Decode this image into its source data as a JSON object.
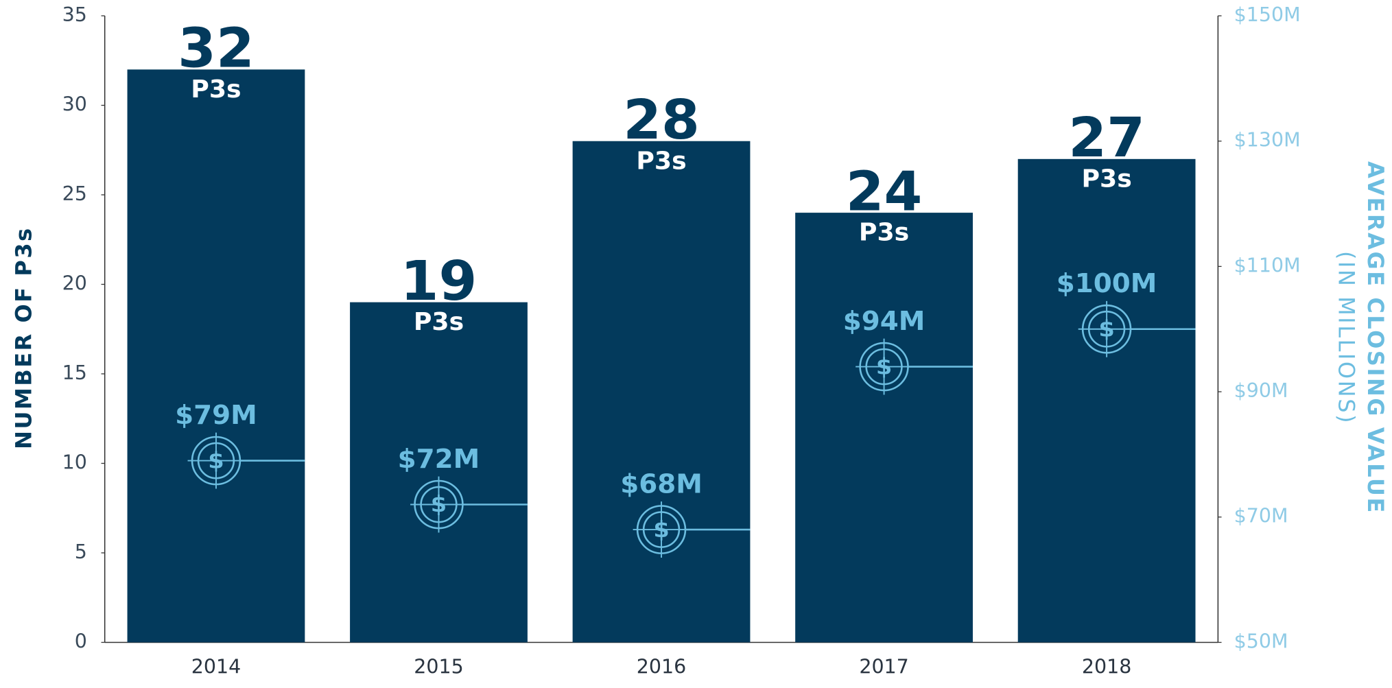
{
  "chart_data": {
    "type": "bar",
    "categories": [
      "2014",
      "2015",
      "2016",
      "2017",
      "2018"
    ],
    "values": [
      32,
      19,
      28,
      24,
      27
    ],
    "color": "#033a5c",
    "unit_label": "P3s",
    "ylabel": "NUMBER OF P3s",
    "ylim": [
      0,
      35
    ],
    "yticks": [
      0,
      5,
      10,
      15,
      20,
      25,
      30,
      35
    ],
    "closing_values": {
      "values": [
        79,
        72,
        68,
        94,
        100
      ],
      "value_labels": [
        "$79M",
        "$72M",
        "$68M",
        "$94M",
        "$100M"
      ],
      "color": "#6cbde0",
      "axis": "y2",
      "marker_symbol": "$"
    },
    "y2label": "AVERAGE CLOSING VALUE",
    "y2label_sub": "(IN MILLIONS)",
    "y2lim": [
      50,
      150
    ],
    "y2ticks": [
      {
        "value": 50,
        "label": "$50M"
      },
      {
        "value": 70,
        "label": "$70M"
      },
      {
        "value": 90,
        "label": "$90M"
      },
      {
        "value": 110,
        "label": "$110M"
      },
      {
        "value": 130,
        "label": "$130M"
      },
      {
        "value": 150,
        "label": "$150M"
      }
    ]
  }
}
